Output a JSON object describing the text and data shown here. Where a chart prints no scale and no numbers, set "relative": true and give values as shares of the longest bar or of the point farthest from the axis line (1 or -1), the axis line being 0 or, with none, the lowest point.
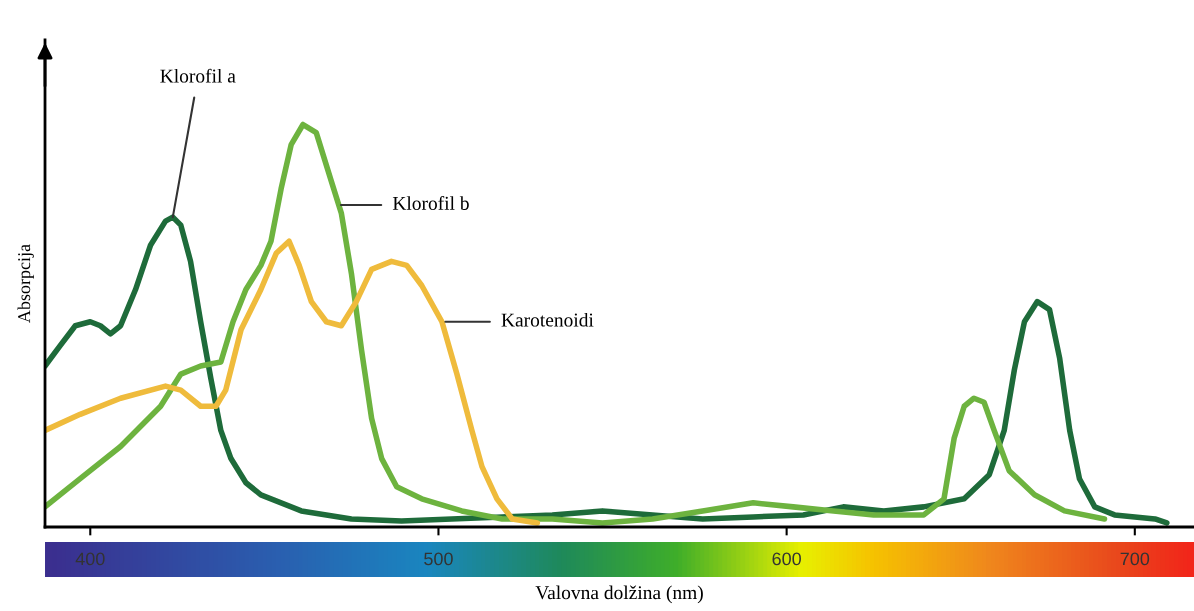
{
  "chart_data": {
    "type": "line",
    "relative": true,
    "xlabel": "Valovna dolžina (nm)",
    "ylabel": "Absorpcija",
    "xlim": [
      387,
      717
    ],
    "xticks": [
      400,
      500,
      600,
      700
    ],
    "tick_labels": "x",
    "series": [
      {
        "color": "#1e6b3a",
        "x": [
          387.0,
          391.3,
          395.7,
          400,
          402.9,
          405.8,
          408.7,
          413.0,
          417.3,
          421.6,
          423.7,
          426.0,
          428.8,
          431.7,
          434.6,
          437.5,
          440.4,
          444.7,
          449.0,
          460.6,
          475.0,
          489.4,
          503.8,
          518.3,
          532.7,
          547.1,
          561.5,
          575.9,
          590.4,
          604.8,
          616.3,
          627.9,
          639.4,
          651.0,
          658.2,
          662.5,
          665.4,
          668.3,
          672.0,
          675.5,
          678.4,
          681.3,
          684.1,
          688.5,
          694.2,
          700,
          705.8,
          709.2
        ],
        "values": [
          0.4,
          0.45,
          0.5,
          0.51,
          0.5,
          0.48,
          0.5,
          0.59,
          0.7,
          0.76,
          0.77,
          0.75,
          0.66,
          0.51,
          0.37,
          0.24,
          0.17,
          0.11,
          0.08,
          0.04,
          0.02,
          0.015,
          0.02,
          0.025,
          0.03,
          0.04,
          0.03,
          0.02,
          0.025,
          0.03,
          0.05,
          0.04,
          0.05,
          0.07,
          0.13,
          0.24,
          0.39,
          0.51,
          0.56,
          0.54,
          0.42,
          0.24,
          0.12,
          0.05,
          0.03,
          0.025,
          0.02,
          0.01
        ]
      },
      {
        "color": "#6db33f",
        "x": [
          387.0,
          397.1,
          408.7,
          420.2,
          426.0,
          431.7,
          437.5,
          441.0,
          444.7,
          449.0,
          451.9,
          454.8,
          457.7,
          461.1,
          464.9,
          469.2,
          472.1,
          475.0,
          477.9,
          480.8,
          483.7,
          488.0,
          495.2,
          506.7,
          518.3,
          532.7,
          547.1,
          561.5,
          575.9,
          590.4,
          601.9,
          613.5,
          625.0,
          639.4,
          645.2,
          648.1,
          651.0,
          653.8,
          656.7,
          659.6,
          663.9,
          671.2,
          679.8,
          691.3
        ],
        "values": [
          0.05,
          0.12,
          0.2,
          0.3,
          0.38,
          0.4,
          0.41,
          0.51,
          0.59,
          0.65,
          0.71,
          0.84,
          0.95,
          1.0,
          0.98,
          0.86,
          0.78,
          0.63,
          0.44,
          0.27,
          0.17,
          0.1,
          0.07,
          0.04,
          0.02,
          0.02,
          0.01,
          0.02,
          0.04,
          0.06,
          0.05,
          0.04,
          0.03,
          0.03,
          0.07,
          0.22,
          0.3,
          0.32,
          0.31,
          0.24,
          0.14,
          0.08,
          0.04,
          0.02
        ]
      },
      {
        "color": "#efbb3c",
        "x": [
          387.0,
          397.1,
          408.7,
          421.6,
          426.0,
          431.7,
          436.1,
          438.9,
          443.3,
          449.0,
          453.4,
          457.1,
          460.0,
          463.5,
          467.8,
          472.1,
          476.4,
          480.8,
          486.5,
          490.9,
          495.2,
          501.0,
          505.3,
          509.6,
          512.5,
          516.8,
          521.2,
          528.4
        ],
        "values": [
          0.24,
          0.28,
          0.32,
          0.35,
          0.34,
          0.3,
          0.3,
          0.34,
          0.49,
          0.59,
          0.68,
          0.71,
          0.65,
          0.56,
          0.51,
          0.5,
          0.56,
          0.64,
          0.66,
          0.65,
          0.6,
          0.51,
          0.38,
          0.24,
          0.15,
          0.07,
          0.02,
          0.01
        ]
      }
    ],
    "annotations": [
      {
        "text": "Klorofil a",
        "x": 423.7,
        "y": 0.77
      },
      {
        "text": "Klorofil b",
        "x": 472,
        "y": 0.8
      },
      {
        "text": "Karotenoidi",
        "x": 502,
        "y": 0.51
      }
    ]
  }
}
